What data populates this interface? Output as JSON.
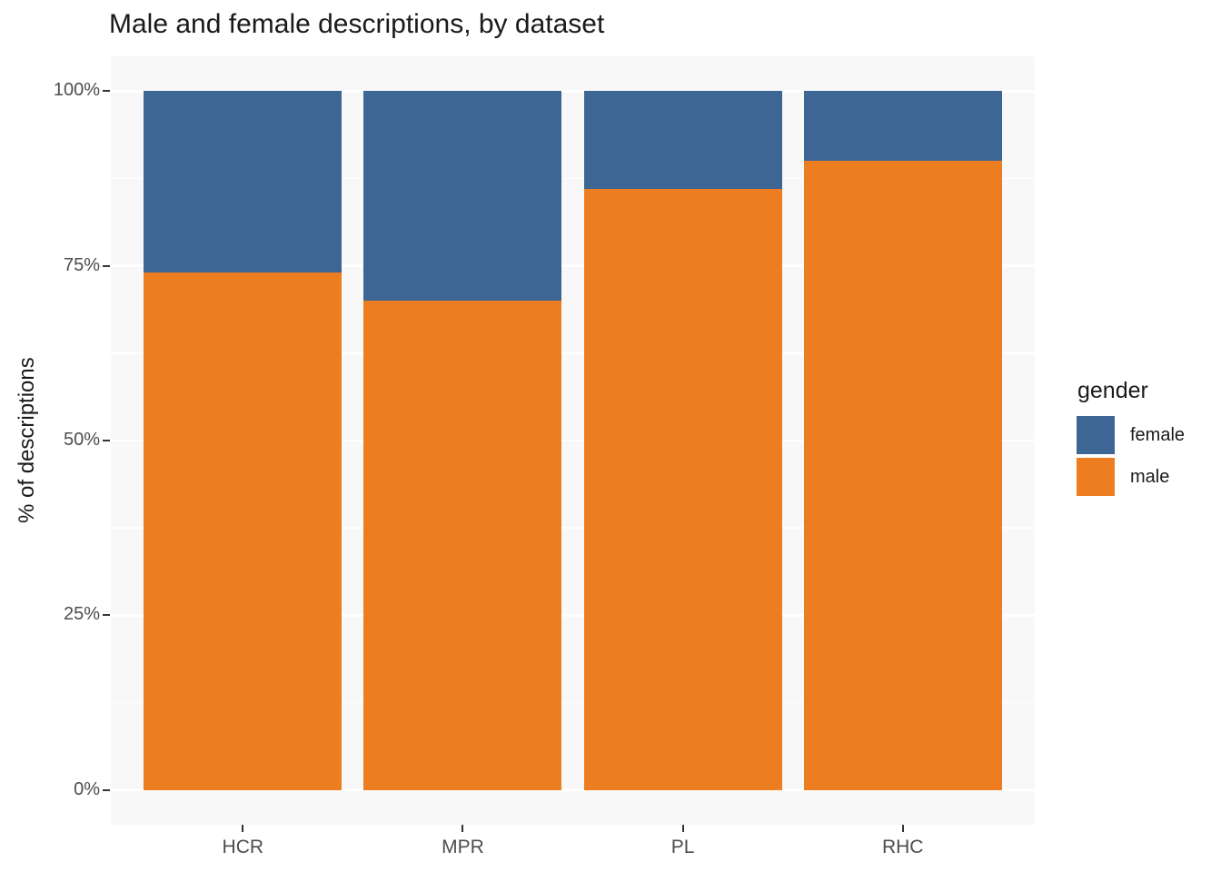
{
  "chart_data": {
    "type": "bar",
    "stacked": true,
    "orientation": "vertical",
    "title": "Male and female descriptions, by dataset",
    "xlabel": "",
    "ylabel": "% of descriptions",
    "legend_title": "gender",
    "legend_position": "right",
    "categories": [
      "HCR",
      "MPR",
      "PL",
      "RHC"
    ],
    "series": [
      {
        "name": "female",
        "color": "#3E6695",
        "values": [
          26,
          30,
          14,
          10
        ]
      },
      {
        "name": "male",
        "color": "#ED7D21",
        "values": [
          74,
          70,
          86,
          90
        ]
      }
    ],
    "value_unit": "percent of descriptions",
    "ylim": [
      0,
      100
    ],
    "y_ticks": [
      {
        "value": 0,
        "label": "0%"
      },
      {
        "value": 25,
        "label": "25%"
      },
      {
        "value": 50,
        "label": "50%"
      },
      {
        "value": 75,
        "label": "75%"
      },
      {
        "value": 100,
        "label": "100%"
      }
    ],
    "y_minor_ticks": [
      12.5,
      37.5,
      62.5,
      87.5
    ],
    "grid": true,
    "bar_width_fraction": 0.9
  },
  "colors": {
    "female": "#3E6695",
    "male": "#ED7D21",
    "panel_background": "#F8F8F8",
    "gridline": "#FFFFFF",
    "axis_text": "#4D4D4D",
    "tick_mark": "#333333",
    "title_text": "#1A1A1A"
  }
}
